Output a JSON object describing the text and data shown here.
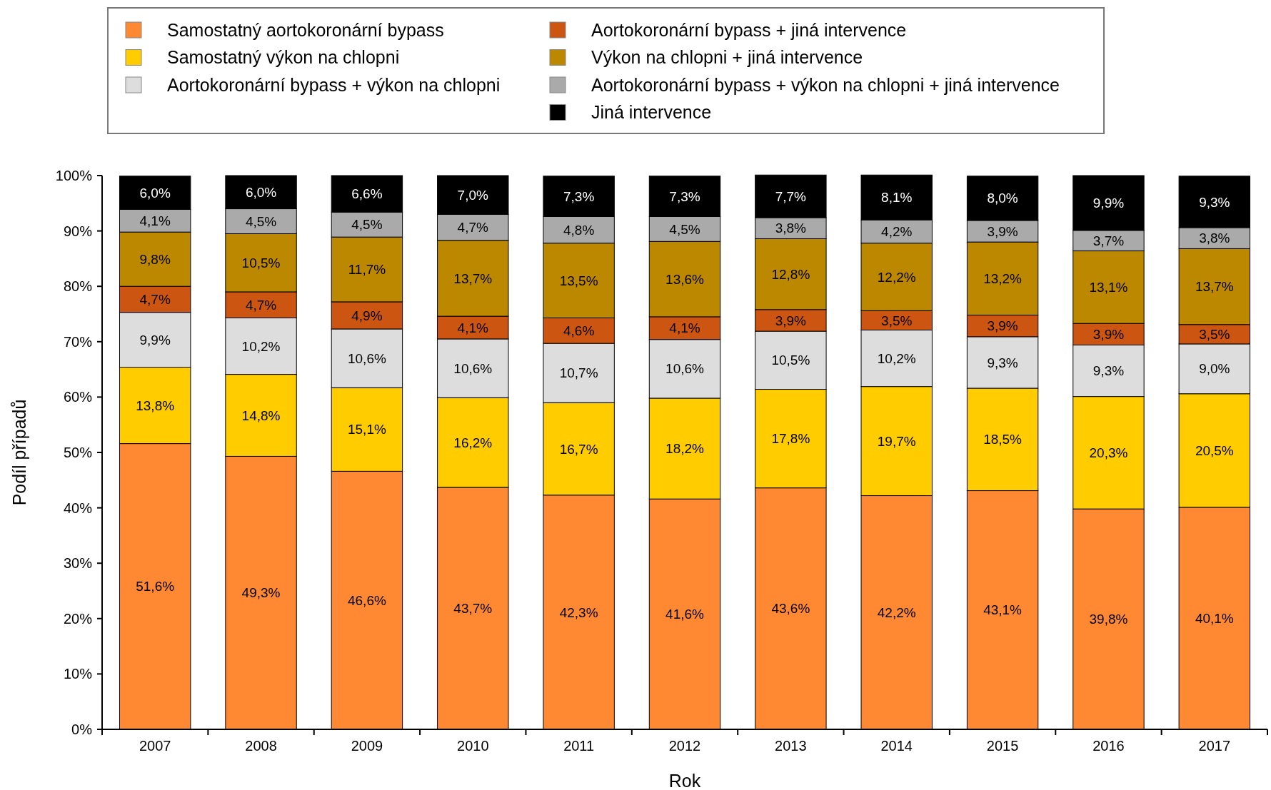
{
  "chart_data": {
    "type": "bar",
    "stacked": true,
    "xlabel": "Rok",
    "ylabel": "Podíl případů",
    "legend": "top",
    "grid": false,
    "categories": [
      "2007",
      "2008",
      "2009",
      "2010",
      "2011",
      "2012",
      "2013",
      "2014",
      "2015",
      "2016",
      "2017"
    ],
    "ylim": [
      0,
      100
    ],
    "yticks": [
      {
        "value": 0,
        "label": "0%"
      },
      {
        "value": 10,
        "label": "10%"
      },
      {
        "value": 20,
        "label": "20%"
      },
      {
        "value": 30,
        "label": "30%"
      },
      {
        "value": 40,
        "label": "40%"
      },
      {
        "value": 50,
        "label": "50%"
      },
      {
        "value": 60,
        "label": "60%"
      },
      {
        "value": 70,
        "label": "70%"
      },
      {
        "value": 80,
        "label": "80%"
      },
      {
        "value": 90,
        "label": "90%"
      },
      {
        "value": 100,
        "label": "100%"
      }
    ],
    "series": [
      {
        "name": "Samostatný aortokoronární bypass",
        "color": "#ff8833",
        "values": [
          51.6,
          49.3,
          46.6,
          43.7,
          42.3,
          41.6,
          43.6,
          42.2,
          43.1,
          39.8,
          40.1
        ],
        "value_labels": [
          "51,6%",
          "49,3%",
          "46,6%",
          "43,7%",
          "42,3%",
          "41,6%",
          "43,6%",
          "42,2%",
          "43,1%",
          "39,8%",
          "40,1%"
        ]
      },
      {
        "name": "Samostatný výkon na chlopni",
        "color": "#ffcc00",
        "values": [
          13.8,
          14.8,
          15.1,
          16.2,
          16.7,
          18.2,
          17.8,
          19.7,
          18.5,
          20.3,
          20.5
        ],
        "value_labels": [
          "13,8%",
          "14,8%",
          "15,1%",
          "16,2%",
          "16,7%",
          "18,2%",
          "17,8%",
          "19,7%",
          "18,5%",
          "20,3%",
          "20,5%"
        ]
      },
      {
        "name": "Aortokoronární bypass + výkon na chlopni",
        "color": "#dddddd",
        "values": [
          9.9,
          10.2,
          10.6,
          10.6,
          10.7,
          10.6,
          10.5,
          10.2,
          9.3,
          9.3,
          9.0
        ],
        "value_labels": [
          "9,9%",
          "10,2%",
          "10,6%",
          "10,6%",
          "10,7%",
          "10,6%",
          "10,5%",
          "10,2%",
          "9,3%",
          "9,3%",
          "9,0%"
        ]
      },
      {
        "name": "Aortokoronární bypass + jiná intervence",
        "color": "#cc5511",
        "values": [
          4.7,
          4.7,
          4.9,
          4.1,
          4.6,
          4.1,
          3.9,
          3.5,
          3.9,
          3.9,
          3.5
        ],
        "value_labels": [
          "4,7%",
          "4,7%",
          "4,9%",
          "4,1%",
          "4,6%",
          "4,1%",
          "3,9%",
          "3,5%",
          "3,9%",
          "3,9%",
          "3,5%"
        ]
      },
      {
        "name": "Výkon na chlopni + jiná intervence",
        "color": "#bb8800",
        "values": [
          9.8,
          10.5,
          11.7,
          13.7,
          13.5,
          13.6,
          12.8,
          12.2,
          13.2,
          13.1,
          13.7
        ],
        "value_labels": [
          "9,8%",
          "10,5%",
          "11,7%",
          "13,7%",
          "13,5%",
          "13,6%",
          "12,8%",
          "12,2%",
          "13,2%",
          "13,1%",
          "13,7%"
        ]
      },
      {
        "name": "Aortokoronární bypass + výkon na chlopni + jiná intervence",
        "color": "#aaaaaa",
        "values": [
          4.1,
          4.5,
          4.5,
          4.7,
          4.8,
          4.5,
          3.8,
          4.2,
          3.9,
          3.7,
          3.8
        ],
        "value_labels": [
          "4,1%",
          "4,5%",
          "4,5%",
          "4,7%",
          "4,8%",
          "4,5%",
          "3,8%",
          "4,2%",
          "3,9%",
          "3,7%",
          "3,8%"
        ]
      },
      {
        "name": "Jiná intervence",
        "color": "#000000",
        "values": [
          6.0,
          6.0,
          6.6,
          7.0,
          7.3,
          7.3,
          7.7,
          8.1,
          8.0,
          9.9,
          9.3
        ],
        "value_labels": [
          "6,0%",
          "6,0%",
          "6,6%",
          "7,0%",
          "7,3%",
          "7,3%",
          "7,7%",
          "8,1%",
          "8,0%",
          "9,9%",
          "9,3%"
        ]
      }
    ]
  }
}
